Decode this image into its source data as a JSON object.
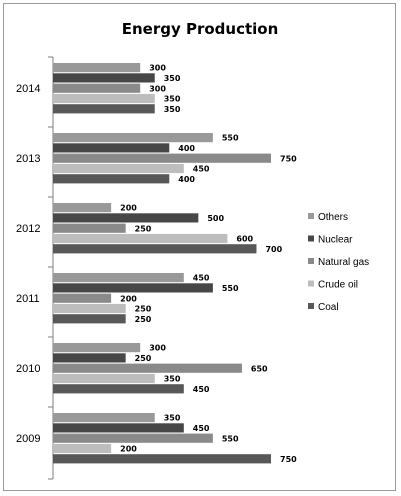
{
  "chart_data": {
    "type": "bar",
    "orientation": "horizontal",
    "title": "Energy Production",
    "xlabel": "",
    "ylabel": "",
    "categories": [
      "2014",
      "2013",
      "2012",
      "2011",
      "2010",
      "2009"
    ],
    "series": [
      {
        "name": "Others",
        "color": "#999999",
        "values": [
          300,
          550,
          200,
          450,
          300,
          350
        ]
      },
      {
        "name": "Nuclear",
        "color": "#474747",
        "values": [
          350,
          400,
          500,
          550,
          250,
          450
        ]
      },
      {
        "name": "Natural gas",
        "color": "#8a8a8a",
        "values": [
          300,
          750,
          250,
          200,
          650,
          550
        ]
      },
      {
        "name": "Crude oil",
        "color": "#bdbdbd",
        "values": [
          350,
          450,
          600,
          250,
          350,
          200
        ]
      },
      {
        "name": "Coal",
        "color": "#585858",
        "values": [
          350,
          400,
          700,
          250,
          450,
          750
        ]
      }
    ],
    "xlim": [
      0,
      800
    ],
    "grid": false,
    "legend_position": "right"
  }
}
